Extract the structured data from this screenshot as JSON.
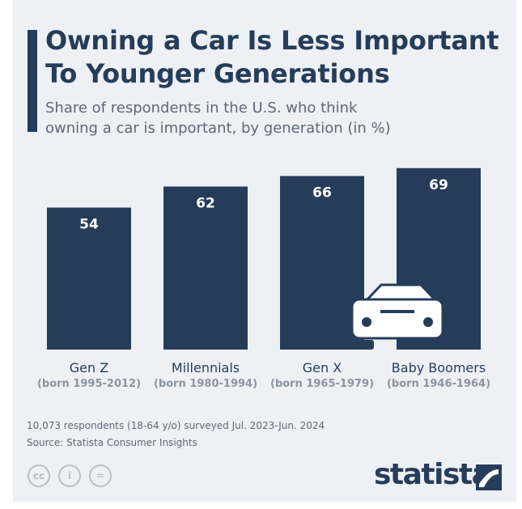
{
  "header": {
    "title_lines": [
      "Owning a Car Is Less Important",
      "To Younger Generations"
    ],
    "subtitle_lines": [
      "Share of respondents in the U.S. who think",
      "owning a car is important, by generation (in %)"
    ]
  },
  "chart_data": {
    "type": "bar",
    "title": "Owning a Car Is Less Important To Younger Generations",
    "subtitle": "Share of respondents in the U.S. who think owning a car is important, by generation (in %)",
    "categories": [
      "Gen Z",
      "Millennials",
      "Gen X",
      "Baby Boomers"
    ],
    "category_sublabels": [
      "(born 1995-2012)",
      "(born 1980-1994)",
      "(born 1965-1979)",
      "(born 1946-1964)"
    ],
    "values": [
      54,
      62,
      66,
      69
    ],
    "ylim": [
      0,
      100
    ],
    "grid": false,
    "bar_color": "#263d5a"
  },
  "footer": {
    "note": "10,073 respondents (18-64 y/o) surveyed Jul. 2023-Jun. 2024",
    "source": "Source: Statista Consumer Insights"
  },
  "license_icons": [
    {
      "icon": "cc-icon",
      "glyph": "cc"
    },
    {
      "icon": "attribution-icon",
      "glyph": "i"
    },
    {
      "icon": "no-derivatives-icon",
      "glyph": "="
    }
  ],
  "brand": {
    "name": "statista",
    "color": "#263d5a"
  }
}
